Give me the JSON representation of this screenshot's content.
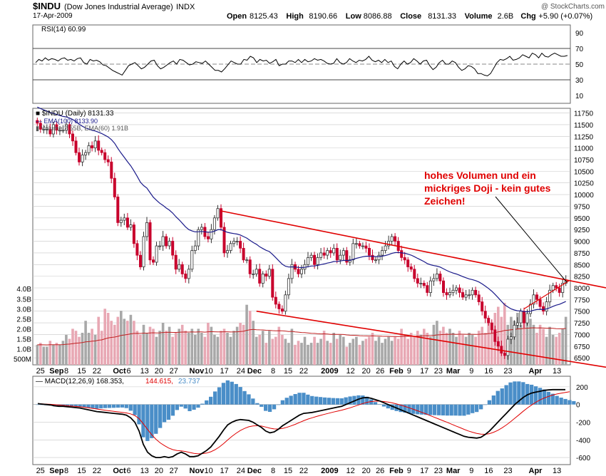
{
  "header": {
    "symbol": "$INDU",
    "name": "(Dow Jones Industrial Average)",
    "exchange": "INDX",
    "date": "17-Apr-2009",
    "watermark": "@ StockCharts.com",
    "ohlc": [
      {
        "label": "Open",
        "value": "8125.43"
      },
      {
        "label": "High",
        "value": "8190.66"
      },
      {
        "label": "Low",
        "value": "8086.88"
      },
      {
        "label": "Close",
        "value": "8131.33"
      },
      {
        "label": "Volume",
        "value": "2.6B"
      },
      {
        "label": "Chg",
        "value": "+5.90 (+0.07%)"
      }
    ]
  },
  "annotation": {
    "lines": [
      "hohes Volumen und ein",
      "mickriges Doji - kein gutes",
      "Zeichen!"
    ],
    "color": "#e00000"
  },
  "colors": {
    "up": "#333333",
    "down": "#c8002c",
    "ema100": "#1a1a8a",
    "vol_up": "#a8a8a8",
    "vol_down": "#e8a8b4",
    "vol_ema": "#c02020",
    "trend": "#e00000",
    "macd": "#000000",
    "signal": "#e00000",
    "hist": "#4a8ec8",
    "rsi_fill": "#c06070",
    "grid": "#c8c8c8"
  },
  "chart_data": [
    {
      "type": "line",
      "panel": "rsi",
      "legend": {
        "label": "RSI(14)",
        "value": "60.99"
      },
      "yticks": [
        90,
        70,
        50,
        30,
        10
      ],
      "ylim": [
        0,
        100
      ],
      "rsi_levels": [
        70,
        50,
        30
      ],
      "values": [
        52,
        56,
        54,
        58,
        55,
        57,
        56,
        54,
        57,
        58,
        55,
        56,
        54,
        57,
        58,
        52,
        50,
        56,
        54,
        55,
        53,
        49,
        48,
        45,
        42,
        40,
        38,
        36,
        42,
        48,
        50,
        52,
        48,
        44,
        46,
        50,
        54,
        55,
        48,
        44,
        46,
        49,
        52,
        54,
        50,
        56,
        55,
        52,
        49,
        50,
        53,
        52,
        51,
        54,
        50,
        46,
        42,
        42,
        40,
        44,
        49,
        54,
        52,
        50,
        50,
        56,
        55,
        60,
        58,
        52,
        56,
        54,
        55,
        51,
        53,
        56,
        48,
        50,
        50,
        54,
        54,
        52,
        56,
        52,
        56,
        53,
        54,
        57,
        55,
        56,
        54,
        51,
        50,
        51,
        57,
        52,
        50,
        52,
        57,
        54,
        52,
        55,
        54,
        56,
        60,
        55,
        53,
        55,
        52,
        56,
        52,
        54,
        47,
        44,
        50,
        54,
        50,
        52,
        57,
        54,
        50,
        54,
        55,
        48,
        43,
        46,
        52,
        55,
        50,
        50,
        54,
        52,
        46,
        42,
        44,
        48,
        47,
        44,
        38,
        38,
        36,
        35,
        38,
        45,
        52,
        56,
        55,
        57,
        60,
        55,
        56,
        58,
        62,
        60,
        58,
        64,
        62,
        58,
        64,
        60,
        59,
        62,
        64,
        62,
        60,
        60,
        61
      ]
    },
    {
      "type": "candlestick",
      "panel": "price",
      "legend": [
        {
          "label": "$INDU (Daily)",
          "value": "8131.33"
        },
        {
          "label": "EMA(100)",
          "value": "8133.90"
        },
        {
          "label": "Volume",
          "value": "2.55B, EMA(60) 1.91B"
        }
      ],
      "yticks": [
        11750,
        11500,
        11250,
        11000,
        10750,
        10500,
        10250,
        10000,
        9750,
        9500,
        9250,
        9000,
        8750,
        8500,
        8250,
        8000,
        7750,
        7500,
        7250,
        7000,
        6750,
        6500
      ],
      "ylim": [
        6350,
        11850
      ],
      "volume_ticks": [
        {
          "label": "4.0B",
          "value": 4.0
        },
        {
          "label": "3.5B",
          "value": 3.5
        },
        {
          "label": "3.0B",
          "value": 3.0
        },
        {
          "label": "2.5B",
          "value": 2.5
        },
        {
          "label": "2.0B",
          "value": 2.0
        },
        {
          "label": "1.5B",
          "value": 1.5
        },
        {
          "label": "1.0B",
          "value": 1.0
        },
        {
          "label": "500M",
          "value": 0.5
        }
      ],
      "volume_ylim": [
        0.2,
        4.4
      ],
      "close": [
        11530,
        11400,
        11400,
        11400,
        11300,
        11500,
        11380,
        11380,
        11380,
        11500,
        11300,
        11150,
        10900,
        10700,
        10850,
        10900,
        11050,
        11000,
        11150,
        10950,
        10900,
        10750,
        10700,
        10350,
        9950,
        9400,
        9450,
        9500,
        9300,
        9350,
        8950,
        8700,
        8450,
        9100,
        9400,
        8600,
        8550,
        8900,
        8900,
        9100,
        8900,
        9000,
        8700,
        8400,
        8500,
        8300,
        8200,
        8400,
        8800,
        8900,
        9250,
        9300,
        9100,
        9050,
        9250,
        9500,
        9700,
        9300,
        8750,
        8800,
        8950,
        9000,
        9000,
        8850,
        8600,
        8600,
        8300,
        8300,
        8400,
        8100,
        8300,
        8250,
        8400,
        7800,
        7650,
        7550,
        7500,
        7850,
        8200,
        8500,
        8400,
        8300,
        8400,
        8500,
        8650,
        8700,
        8500,
        8650,
        8750,
        8700,
        8800,
        8750,
        8850,
        8600,
        8700,
        8800,
        8550,
        8600,
        8950,
        8950,
        8900,
        8900,
        8850,
        8700,
        8600,
        8600,
        8700,
        8800,
        8900,
        9000,
        9100,
        9000,
        8800,
        8650,
        8600,
        8450,
        8400,
        8200,
        8100,
        8100,
        8050,
        7900,
        8150,
        8200,
        8300,
        8150,
        7900,
        7850,
        7900,
        7950,
        8000,
        7900,
        7800,
        7850,
        7850,
        7950,
        7850,
        7700,
        7500,
        7350,
        7250,
        7100,
        6850,
        6750,
        6600,
        6550,
        6900,
        6950,
        7200,
        7250,
        7500,
        7250,
        7450,
        7650,
        7850,
        7750,
        7600,
        7500,
        7700,
        7950,
        8050,
        8000,
        7900,
        8100,
        8150
      ]
    },
    {
      "type": "bar",
      "panel": "volume",
      "values": [
        1.2,
        1.3,
        1.1,
        1.1,
        1.4,
        1.2,
        1.3,
        1.2,
        1.4,
        1.7,
        1.5,
        2.0,
        1.9,
        1.6,
        1.8,
        2.4,
        1.8,
        2.0,
        1.7,
        2.6,
        1.9,
        3.0,
        2.8,
        2.4,
        2.2,
        2.6,
        2.9,
        2.5,
        2.4,
        2.7,
        2.4,
        1.9,
        1.7,
        2.2,
        1.8,
        2.1,
        2.0,
        1.6,
        1.9,
        2.3,
        1.9,
        2.1,
        1.6,
        1.8,
        2.0,
        2.2,
        1.9,
        1.8,
        2.0,
        1.7,
        2.0,
        1.8,
        1.6,
        2.3,
        2.1,
        1.7,
        1.6,
        1.9,
        2.0,
        1.8,
        1.6,
        1.9,
        2.1,
        2.3,
        2.2,
        3.2,
        2.9,
        2.4,
        1.6,
        1.7,
        1.9,
        1.3,
        1.9,
        1.5,
        1.6,
        2.1,
        1.7,
        1.5,
        1.3,
        2.0,
        1.2,
        1.4,
        1.3,
        1.6,
        1.2,
        1.3,
        1.6,
        1.3,
        1.5,
        1.9,
        1.4,
        1.3,
        1.8,
        1.5,
        1.7,
        1.6,
        1.1,
        1.3,
        1.5,
        1.6,
        1.2,
        1.4,
        1.5,
        1.6,
        1.8,
        1.4,
        1.6,
        1.3,
        1.5,
        1.6,
        1.4,
        1.6,
        1.5,
        2.0,
        1.7,
        1.5,
        1.8,
        1.6,
        1.9,
        1.7,
        2.0,
        1.8,
        1.6,
        2.2,
        2.4,
        1.9,
        2.1,
        1.8,
        2.0,
        1.8,
        1.6,
        1.9,
        1.7,
        1.6,
        1.8,
        1.7,
        1.6,
        1.9,
        2.1,
        1.8,
        2.4,
        2.0,
        2.8,
        3.1,
        2.6,
        3.3,
        2.2,
        2.6,
        2.4,
        2.8,
        2.2,
        2.6,
        2.3,
        2.5,
        2.2,
        1.8,
        2.2,
        2.0,
        1.6,
        2.1,
        1.7,
        1.6,
        1.8,
        2.0,
        2.6
      ]
    },
    {
      "type": "line",
      "panel": "macd",
      "legend": [
        {
          "label": "MACD(12,26,9)",
          "value": "168.353,"
        },
        {
          "label": "",
          "value": "144.615,"
        },
        {
          "label": "",
          "value": "23.737"
        }
      ],
      "yticks": [
        200,
        0,
        -200,
        -400,
        -600
      ],
      "ylim": [
        -680,
        320
      ],
      "macd": [
        10,
        5,
        0,
        -5,
        -15,
        -20,
        -20,
        -25,
        -30,
        -35,
        -40,
        -50,
        -60,
        -70,
        -80,
        -85,
        -90,
        -95,
        -100,
        -105,
        -110,
        -120,
        -150,
        -200,
        -300,
        -450,
        -540,
        -580,
        -600,
        -600,
        -590,
        -600,
        -590,
        -560,
        -540,
        -560,
        -590,
        -590,
        -580,
        -550,
        -520,
        -480,
        -420,
        -360,
        -290,
        -230,
        -200,
        -180,
        -170,
        -175,
        -180,
        -200,
        -230,
        -260,
        -300,
        -320,
        -310,
        -280,
        -240,
        -210,
        -180,
        -150,
        -120,
        -100,
        -95,
        -90,
        -80,
        -70,
        -60,
        -50,
        -40,
        -30,
        -20,
        0,
        20,
        40,
        60,
        75,
        80,
        70,
        55,
        40,
        20,
        0,
        -20,
        -40,
        -60,
        -80,
        -100,
        -120,
        -140,
        -160,
        -180,
        -200,
        -220,
        -240,
        -260,
        -280,
        -300,
        -320,
        -340,
        -360,
        -370,
        -375,
        -380,
        -370,
        -340,
        -300,
        -250,
        -200,
        -150,
        -100,
        -50,
        0,
        40,
        80,
        110,
        130,
        140,
        150,
        160,
        165,
        168,
        168,
        168,
        168
      ],
      "signal": [
        10,
        8,
        5,
        2,
        -2,
        -6,
        -10,
        -14,
        -18,
        -22,
        -26,
        -31,
        -37,
        -44,
        -51,
        -58,
        -65,
        -71,
        -77,
        -83,
        -89,
        -95,
        -106,
        -125,
        -160,
        -218,
        -282,
        -342,
        -393,
        -434,
        -465,
        -492,
        -511,
        -521,
        -525,
        -532,
        -543,
        -553,
        -558,
        -556,
        -549,
        -535,
        -512,
        -482,
        -443,
        -401,
        -361,
        -325,
        -294,
        -270,
        -252,
        -242,
        -240,
        -244,
        -255,
        -268,
        -276,
        -277,
        -270,
        -258,
        -242,
        -224,
        -203,
        -183,
        -165,
        -150,
        -136,
        -123,
        -110,
        -98,
        -86,
        -75,
        -64,
        -51,
        -37,
        -21,
        -5,
        11,
        25,
        34,
        38,
        38,
        34,
        27,
        18,
        6,
        -7,
        -22,
        -37,
        -54,
        -71,
        -89,
        -107,
        -126,
        -145,
        -164,
        -183,
        -202,
        -222,
        -242,
        -261,
        -281,
        -299,
        -314,
        -327,
        -336,
        -337,
        -330,
        -314,
        -292,
        -264,
        -232,
        -195,
        -156,
        -117,
        -77,
        -39,
        -5,
        26,
        52,
        74,
        92,
        107,
        119,
        129,
        137,
        144
      ],
      "hist": [
        0,
        -3,
        -5,
        -7,
        -13,
        -14,
        -10,
        -11,
        -12,
        -13,
        -14,
        -19,
        -23,
        -26,
        -29,
        -27,
        -25,
        -24,
        -23,
        -22,
        -21,
        -25,
        -44,
        -75,
        -140,
        -232,
        -258,
        -238,
        -207,
        -166,
        -125,
        -108,
        -79,
        -39,
        -15,
        -28,
        -47,
        -37,
        -22,
        6,
        29,
        55,
        92,
        122,
        153,
        171,
        161,
        145,
        124,
        95,
        72,
        42,
        10,
        -16,
        -45,
        -52,
        -34,
        -3,
        30,
        48,
        62,
        74,
        83,
        83,
        70,
        60,
        56,
        53,
        50,
        48,
        46,
        45,
        44,
        51,
        57,
        61,
        65,
        64,
        55,
        36,
        17,
        2,
        -14,
        -27,
        -38,
        -46,
        -53,
        -58,
        -63,
        -66,
        -69,
        -71,
        -73,
        -74,
        -75,
        -76,
        -77,
        -78,
        -78,
        -78,
        -79,
        -79,
        -71,
        -61,
        -53,
        -34,
        -3,
        30,
        64,
        96,
        114,
        137,
        156,
        163,
        163,
        158,
        145,
        140,
        129,
        118,
        107,
        90,
        76,
        61,
        49,
        39,
        31,
        24
      ]
    }
  ],
  "x_axis": {
    "labels": [
      {
        "text": "25",
        "pos": 0.018,
        "bold": false
      },
      {
        "text": "Sep",
        "pos": 0.056,
        "bold": true
      },
      {
        "text": "8",
        "pos": 0.079,
        "bold": false
      },
      {
        "text": "15",
        "pos": 0.115,
        "bold": false
      },
      {
        "text": "22",
        "pos": 0.151,
        "bold": false
      },
      {
        "text": "Oct",
        "pos": 0.204,
        "bold": true
      },
      {
        "text": "6",
        "pos": 0.226,
        "bold": false
      },
      {
        "text": "13",
        "pos": 0.263,
        "bold": false
      },
      {
        "text": "20",
        "pos": 0.297,
        "bold": false
      },
      {
        "text": "27",
        "pos": 0.332,
        "bold": false
      },
      {
        "text": "Nov",
        "pos": 0.386,
        "bold": true
      },
      {
        "text": "10",
        "pos": 0.414,
        "bold": false
      },
      {
        "text": "17",
        "pos": 0.451,
        "bold": false
      },
      {
        "text": "24",
        "pos": 0.49,
        "bold": false
      },
      {
        "text": "Dec",
        "pos": 0.522,
        "bold": true
      },
      {
        "text": "8",
        "pos": 0.566,
        "bold": false
      },
      {
        "text": "15",
        "pos": 0.601,
        "bold": false
      },
      {
        "text": "22",
        "pos": 0.638,
        "bold": false
      },
      {
        "text": "2009",
        "pos": 0.699,
        "bold": true
      },
      {
        "text": "12",
        "pos": 0.748,
        "bold": false
      },
      {
        "text": "20",
        "pos": 0.785,
        "bold": false
      },
      {
        "text": "26",
        "pos": 0.818,
        "bold": false
      },
      {
        "text": "Feb",
        "pos": 0.856,
        "bold": true
      },
      {
        "text": "9",
        "pos": 0.886,
        "bold": false
      },
      {
        "text": "17",
        "pos": 0.922,
        "bold": false
      },
      {
        "text": "23",
        "pos": 0.955,
        "bold": false
      },
      {
        "text": "Mar",
        "pos": 0.99,
        "bold": true
      }
    ],
    "labels_tail": [
      {
        "text": "9",
        "pos": 0.816,
        "bold": false
      },
      {
        "text": "16",
        "pos": 0.848,
        "bold": false
      },
      {
        "text": "23",
        "pos": 0.884,
        "bold": false
      },
      {
        "text": "Apr",
        "pos": 0.935,
        "bold": true
      },
      {
        "text": "13",
        "pos": 0.975,
        "bold": false
      }
    ]
  }
}
